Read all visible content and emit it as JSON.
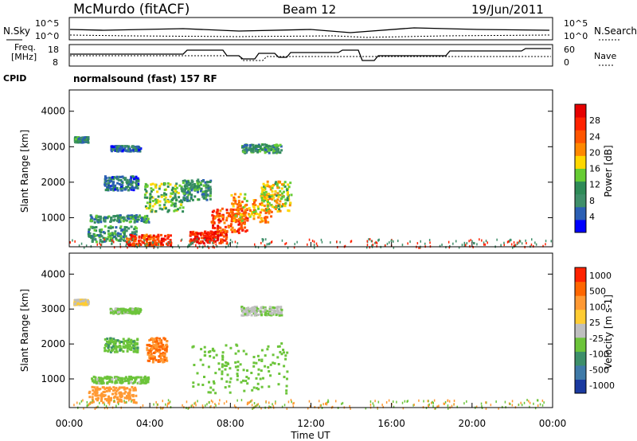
{
  "header": {
    "station": "McMurdo (fitACF)",
    "beam": "Beam 12",
    "date": "19/Jun/2011"
  },
  "noise_panel": {
    "left_label": "N.Sky",
    "right_label": "N.Search",
    "y_ticks": [
      "10^5",
      "10^0"
    ]
  },
  "freq_panel": {
    "left_label_1": "Freq.",
    "left_label_2": "[MHz]",
    "right_label": "Nave",
    "left_ticks": [
      "18",
      "8"
    ],
    "right_ticks": [
      "60",
      "0"
    ]
  },
  "cpid": {
    "label": "CPID",
    "value": "normalsound (fast) 157 RF"
  },
  "x_axis": {
    "label": "Time UT",
    "ticks": [
      "00:00",
      "04:00",
      "08:00",
      "12:00",
      "16:00",
      "20:00",
      "00:00"
    ]
  },
  "chart_data": [
    {
      "type": "heatmap",
      "name": "power",
      "ylabel": "Slant Range [km]",
      "ylim": [
        180,
        4600
      ],
      "xlim": [
        0,
        24
      ],
      "y_ticks": [
        "1000",
        "2000",
        "3000",
        "4000"
      ],
      "colorbar_label": "Power [dB]",
      "colorbar_ticks": [
        "4",
        "8",
        "12",
        "16",
        "20",
        "24",
        "28"
      ],
      "colorbar_colors": [
        "#0000ff",
        "#2b5fb4",
        "#3f8f6a",
        "#2e8b57",
        "#66cc33",
        "#ffd700",
        "#ff8800",
        "#ff5500",
        "#ff2200",
        "#e60000"
      ],
      "blobs": [
        {
          "t0": 0.9,
          "t1": 3.3,
          "r0": 350,
          "r1": 800,
          "v": 10
        },
        {
          "t0": 1.0,
          "t1": 3.9,
          "r0": 900,
          "r1": 1100,
          "v": 9
        },
        {
          "t0": 1.7,
          "t1": 3.4,
          "r0": 1800,
          "r1": 2200,
          "v": 7
        },
        {
          "t0": 2.8,
          "t1": 5.0,
          "r0": 250,
          "r1": 550,
          "v": 24
        },
        {
          "t0": 3.7,
          "t1": 5.6,
          "r0": 1200,
          "r1": 2000,
          "v": 13
        },
        {
          "t0": 5.6,
          "t1": 7.0,
          "r0": 1500,
          "r1": 2100,
          "v": 9
        },
        {
          "t0": 5.9,
          "t1": 7.8,
          "r0": 300,
          "r1": 650,
          "v": 27
        },
        {
          "t0": 7.0,
          "t1": 8.8,
          "r0": 600,
          "r1": 1300,
          "v": 23
        },
        {
          "t0": 8.0,
          "t1": 10.0,
          "r0": 900,
          "r1": 1700,
          "v": 19
        },
        {
          "t0": 9.5,
          "t1": 11.0,
          "r0": 1200,
          "r1": 2050,
          "v": 16
        },
        {
          "t0": 8.5,
          "t1": 10.5,
          "r0": 2850,
          "r1": 3100,
          "v": 9
        },
        {
          "t0": 2.0,
          "t1": 3.5,
          "r0": 2900,
          "r1": 3050,
          "v": 6
        },
        {
          "t0": 0.2,
          "t1": 0.9,
          "r0": 3150,
          "r1": 3300,
          "v": 8
        }
      ]
    },
    {
      "type": "heatmap",
      "name": "velocity",
      "ylabel": "Slant Range [km]",
      "ylim": [
        180,
        4600
      ],
      "xlim": [
        0,
        24
      ],
      "y_ticks": [
        "1000",
        "2000",
        "3000",
        "4000"
      ],
      "colorbar_label": "Velocity [m s-1]",
      "colorbar_ticks": [
        "1000",
        "500",
        "100",
        "25",
        "-25",
        "-100",
        "-500",
        "-1000"
      ],
      "colorbar_colors": [
        "#1a3aa0",
        "#3f7aa8",
        "#3d8f6a",
        "#6cc43a",
        "#bfbfbf",
        "#ffcc33",
        "#ff9933",
        "#ff6600",
        "#ff2200"
      ],
      "blobs": [
        {
          "t0": 0.9,
          "t1": 3.3,
          "r0": 350,
          "r1": 800,
          "v": -150
        },
        {
          "t0": 1.0,
          "t1": 3.9,
          "r0": 900,
          "r1": 1100,
          "v": 50
        },
        {
          "t0": 1.7,
          "t1": 3.4,
          "r0": 1800,
          "r1": 2200,
          "v": 80
        },
        {
          "t0": 3.8,
          "t1": 4.8,
          "r0": 1500,
          "r1": 2200,
          "v": -200
        },
        {
          "t0": 6.0,
          "t1": 10.8,
          "r0": 600,
          "r1": 2050,
          "v": 60
        },
        {
          "t0": 8.5,
          "t1": 10.5,
          "r0": 2850,
          "r1": 3100,
          "v": 20
        },
        {
          "t0": 2.0,
          "t1": 3.5,
          "r0": 2900,
          "r1": 3050,
          "v": 40
        },
        {
          "t0": 0.2,
          "t1": 0.9,
          "r0": 3150,
          "r1": 3300,
          "v": -30
        }
      ]
    }
  ]
}
